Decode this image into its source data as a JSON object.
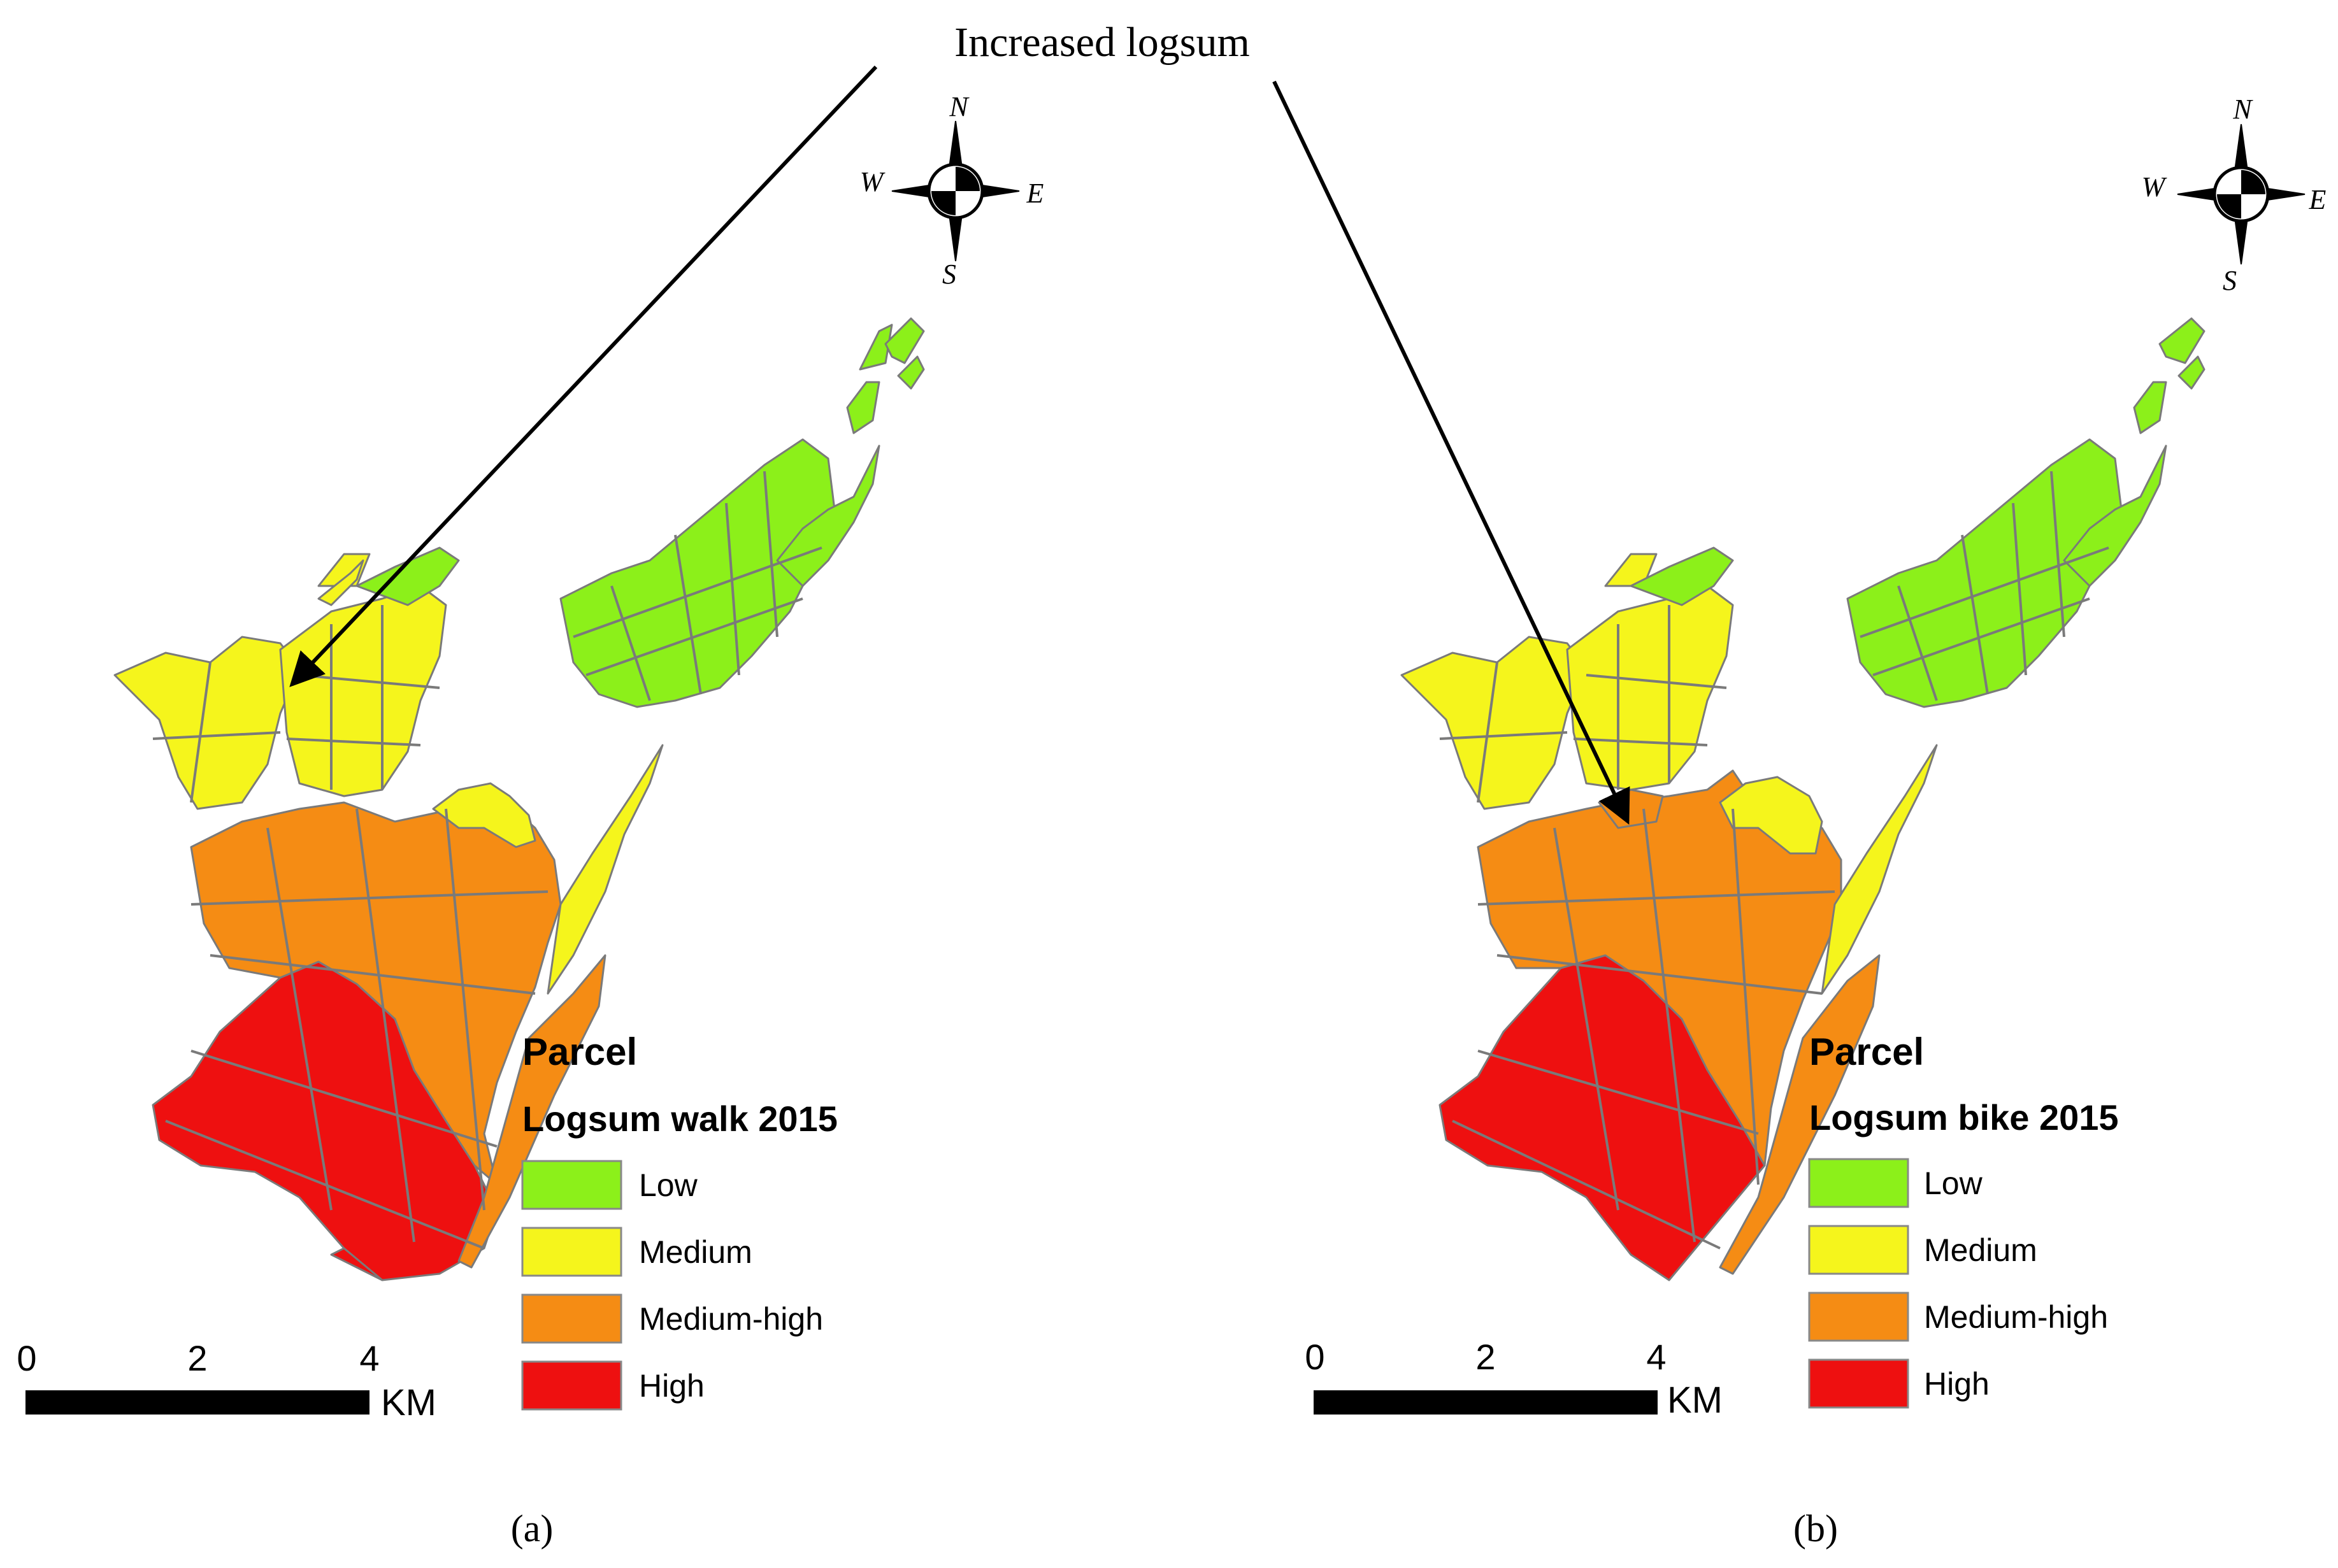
{
  "figure": {
    "annotation": "Increased logsum",
    "colors": {
      "low": "#8cf01a",
      "medium": "#f5f51c",
      "medium_high": "#f58c14",
      "high": "#ee1010",
      "parcel_outline": "#7a7a7a",
      "text": "#000000"
    },
    "panels": [
      {
        "id": "a",
        "caption": "(a)",
        "compass": {
          "n": "N",
          "s": "S",
          "e": "E",
          "w": "W"
        },
        "scalebar": {
          "ticks": [
            "0",
            "2",
            "4"
          ],
          "unit": "KM"
        },
        "legend": {
          "layer_title": "Parcel",
          "field_title": "Logsum walk 2015",
          "classes": [
            {
              "label": "Low",
              "color": "#8cf01a"
            },
            {
              "label": "Medium",
              "color": "#f5f51c"
            },
            {
              "label": "Medium-high",
              "color": "#f58c14"
            },
            {
              "label": "High",
              "color": "#ee1010"
            }
          ]
        }
      },
      {
        "id": "b",
        "caption": "(b)",
        "compass": {
          "n": "N",
          "s": "S",
          "e": "E",
          "w": "W"
        },
        "scalebar": {
          "ticks": [
            "0",
            "2",
            "4"
          ],
          "unit": "KM"
        },
        "legend": {
          "layer_title": "Parcel",
          "field_title": "Logsum bike 2015",
          "classes": [
            {
              "label": "Low",
              "color": "#8cf01a"
            },
            {
              "label": "Medium",
              "color": "#f5f51c"
            },
            {
              "label": "Medium-high",
              "color": "#f58c14"
            },
            {
              "label": "High",
              "color": "#ee1010"
            }
          ]
        }
      }
    ]
  }
}
